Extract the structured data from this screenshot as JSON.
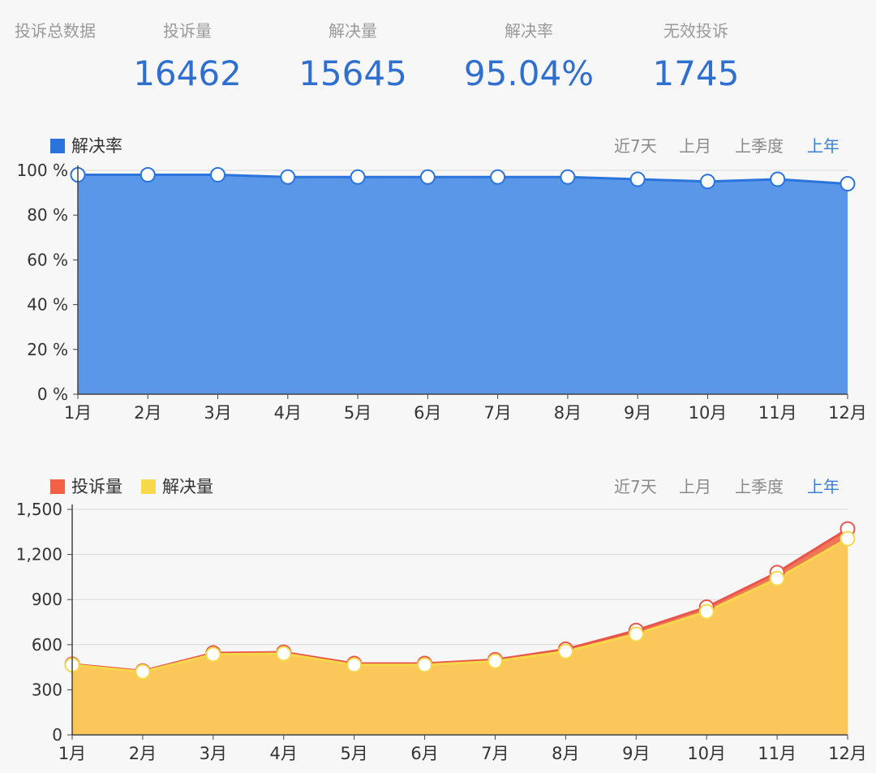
{
  "header": {
    "section_label": "投诉总数据",
    "stats": [
      {
        "label": "投诉量",
        "value": "16462"
      },
      {
        "label": "解决量",
        "value": "15645"
      },
      {
        "label": "解决率",
        "value": "95.04%"
      },
      {
        "label": "无效投诉",
        "value": "1745"
      }
    ]
  },
  "range_tabs": [
    "近7天",
    "上月",
    "上季度",
    "上年"
  ],
  "active_range": "上年",
  "colors": {
    "rate_line": "#2a74db",
    "rate_fill": "#5b97e8",
    "complaints_line": "#e8554a",
    "complaints_fill": "#f07656",
    "resolved_line": "#f7d84a",
    "resolved_fill": "#fbc75a"
  },
  "chart_data": [
    {
      "type": "area",
      "legend": [
        "解决率"
      ],
      "categories": [
        "1月",
        "2月",
        "3月",
        "4月",
        "5月",
        "6月",
        "7月",
        "8月",
        "9月",
        "10月",
        "11月",
        "12月"
      ],
      "series": [
        {
          "name": "解决率",
          "values": [
            98,
            98,
            98,
            97,
            97,
            97,
            97,
            97,
            96,
            95,
            96,
            94
          ]
        }
      ],
      "y_ticks": [
        "0 %",
        "20 %",
        "40 %",
        "60 %",
        "80 %",
        "100 %"
      ],
      "ylim": [
        0,
        100
      ],
      "grid": true,
      "legend_position": "top-left"
    },
    {
      "type": "area",
      "legend": [
        "投诉量",
        "解决量"
      ],
      "categories": [
        "1月",
        "2月",
        "3月",
        "4月",
        "5月",
        "6月",
        "7月",
        "8月",
        "9月",
        "10月",
        "11月",
        "12月"
      ],
      "series": [
        {
          "name": "投诉量",
          "values": [
            470,
            425,
            545,
            550,
            475,
            475,
            500,
            570,
            695,
            850,
            1080,
            1370
          ]
        },
        {
          "name": "解决量",
          "values": [
            465,
            420,
            535,
            540,
            465,
            465,
            490,
            555,
            670,
            820,
            1040,
            1305
          ]
        }
      ],
      "y_ticks": [
        "0",
        "300",
        "600",
        "900",
        "1,200",
        "1,500"
      ],
      "ylim": [
        0,
        1500
      ],
      "grid": true,
      "legend_position": "top-left"
    }
  ]
}
